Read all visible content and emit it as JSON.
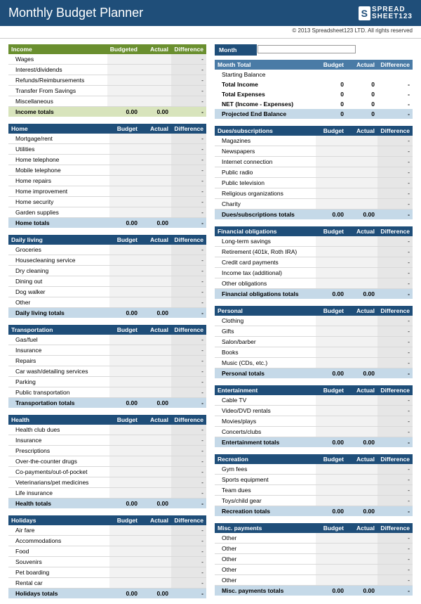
{
  "title": "Monthly Budget Planner",
  "logo": {
    "mark": "S",
    "line1": "SPREAD",
    "line2": "SHEET123"
  },
  "copyright": "© 2013 Spreadsheet123 LTD. All rights reserved",
  "cols": {
    "budget": "Budget",
    "budgeted": "Budgeted",
    "actual": "Actual",
    "diff": "Difference"
  },
  "dash": "-",
  "zero": "0",
  "zeroDec": "0.00",
  "monthLabel": "Month",
  "monthTotalHeader": "Month Total",
  "monthRows": [
    {
      "label": "Starting Balance",
      "b": "",
      "a": "",
      "d": "",
      "plain": true
    },
    {
      "label": "Total Income",
      "b": "0",
      "a": "0",
      "d": "-",
      "bold": true
    },
    {
      "label": "Total Expenses",
      "b": "0",
      "a": "0",
      "d": "-",
      "bold": true
    },
    {
      "label": "NET (Income - Expenses)",
      "b": "0",
      "a": "0",
      "d": "-",
      "bold": true
    },
    {
      "label": "Projected End Balance",
      "b": "0",
      "a": "0",
      "d": "-",
      "hl": true
    }
  ],
  "left": [
    {
      "name": "Income",
      "green": true,
      "budgetedCol": true,
      "rows": [
        "Wages",
        "Interest/dividends",
        "Refunds/Reimbursements",
        "Transfer From Savings",
        "Miscellaneous"
      ],
      "totalsLabel": "Income totals",
      "totalsGreen": true
    },
    {
      "name": "Home",
      "rows": [
        "Mortgage/rent",
        "Utilities",
        "Home telephone",
        "Mobile telephone",
        "Home repairs",
        "Home improvement",
        "Home security",
        "Garden supplies"
      ],
      "totalsLabel": "Home totals"
    },
    {
      "name": "Daily living",
      "rows": [
        "Groceries",
        "Housecleaning service",
        "Dry cleaning",
        "Dining out",
        "Dog walker",
        "Other"
      ],
      "totalsLabel": "Daily living totals"
    },
    {
      "name": "Transportation",
      "rows": [
        "Gas/fuel",
        "Insurance",
        "Repairs",
        "Car wash/detailing services",
        "Parking",
        "Public transportation"
      ],
      "totalsLabel": "Transportation totals"
    },
    {
      "name": "Health",
      "rows": [
        "Health club dues",
        "Insurance",
        "Prescriptions",
        "Over-the-counter drugs",
        "Co-payments/out-of-pocket",
        "Veterinarians/pet medicines",
        "Life insurance"
      ],
      "totalsLabel": "Health totals"
    },
    {
      "name": "Holidays",
      "rows": [
        "Air fare",
        "Accommodations",
        "Food",
        "Souvenirs",
        "Pet boarding",
        "Rental car"
      ],
      "totalsLabel": "Holidays totals"
    }
  ],
  "right": [
    {
      "name": "Dues/subscriptions",
      "rows": [
        "Magazines",
        "Newspapers",
        "Internet connection",
        "Public radio",
        "Public television",
        "Religious organizations",
        "Charity"
      ],
      "totalsLabel": "Dues/subscriptions totals"
    },
    {
      "name": "Financial obligations",
      "rows": [
        "Long-term savings",
        "Retirement (401k, Roth IRA)",
        "Credit card payments",
        "Income tax (additional)",
        "Other obligations"
      ],
      "totalsLabel": "Financial obligations totals"
    },
    {
      "name": "Personal",
      "rows": [
        "Clothing",
        "Gifts",
        "Salon/barber",
        "Books",
        "Music (CDs, etc.)"
      ],
      "totalsLabel": "Personal totals"
    },
    {
      "name": "Entertainment",
      "rows": [
        "Cable TV",
        "Video/DVD rentals",
        "Movies/plays",
        "Concerts/clubs"
      ],
      "totalsLabel": "Entertainment totals"
    },
    {
      "name": "Recreation",
      "rows": [
        "Gym fees",
        "Sports equipment",
        "Team dues",
        "Toys/child gear"
      ],
      "totalsLabel": "Recreation totals"
    },
    {
      "name": "Misc. payments",
      "rows": [
        "Other",
        "Other",
        "Other",
        "Other",
        "Other"
      ],
      "totalsLabel": "Misc. payments totals"
    }
  ]
}
